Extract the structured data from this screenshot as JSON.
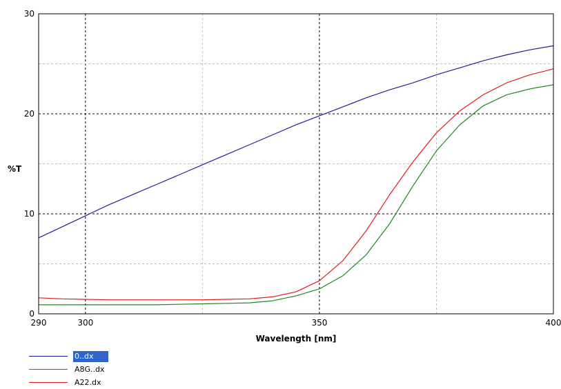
{
  "chart_data": {
    "type": "line",
    "xlabel": "Wavelength [nm]",
    "ylabel": "%T",
    "xlim": [
      290,
      400
    ],
    "ylim": [
      0,
      30
    ],
    "x_tick_labels": [
      "290",
      "300",
      "350",
      "400"
    ],
    "y_tick_labels": [
      "0",
      "10",
      "20",
      "30"
    ],
    "grid": true,
    "legend_position": "bottom-left",
    "series": [
      {
        "name": "0..dx",
        "color": "#1f1f9a",
        "x": [
          290,
          295,
          300,
          305,
          310,
          315,
          320,
          325,
          330,
          335,
          340,
          345,
          350,
          355,
          360,
          365,
          370,
          375,
          380,
          385,
          390,
          395,
          400
        ],
        "y": [
          7.6,
          8.7,
          9.8,
          10.9,
          11.9,
          12.9,
          13.9,
          14.9,
          15.9,
          16.9,
          17.9,
          18.9,
          19.8,
          20.7,
          21.6,
          22.4,
          23.1,
          23.9,
          24.6,
          25.3,
          25.9,
          26.4,
          26.8
        ]
      },
      {
        "name": "A8G..dx",
        "color": "#1a8a1a",
        "x": [
          290,
          295,
          300,
          305,
          310,
          315,
          320,
          325,
          330,
          335,
          340,
          345,
          350,
          355,
          360,
          365,
          370,
          375,
          380,
          385,
          390,
          395,
          400
        ],
        "y": [
          0.9,
          0.9,
          0.9,
          0.9,
          0.9,
          0.9,
          0.95,
          1.0,
          1.05,
          1.1,
          1.3,
          1.8,
          2.5,
          3.8,
          5.9,
          9.0,
          12.8,
          16.3,
          18.9,
          20.8,
          21.9,
          22.5,
          22.9
        ]
      },
      {
        "name": "A22.dx",
        "color": "#e41a1a",
        "x": [
          290,
          295,
          300,
          305,
          310,
          315,
          320,
          325,
          330,
          335,
          340,
          345,
          350,
          355,
          360,
          365,
          370,
          375,
          380,
          385,
          390,
          395,
          400
        ],
        "y": [
          1.6,
          1.5,
          1.45,
          1.4,
          1.4,
          1.4,
          1.4,
          1.4,
          1.45,
          1.5,
          1.7,
          2.2,
          3.3,
          5.3,
          8.3,
          11.9,
          15.2,
          18.1,
          20.3,
          21.9,
          23.1,
          23.9,
          24.5
        ]
      }
    ]
  }
}
